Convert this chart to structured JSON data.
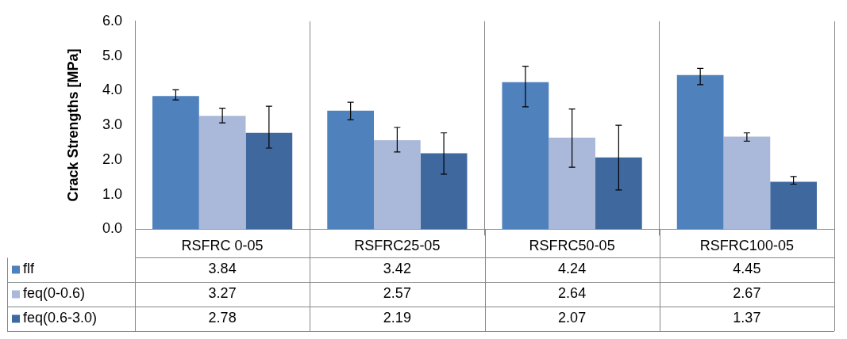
{
  "chart_data": {
    "type": "bar",
    "ylabel": "Crack Strengths [MPa]",
    "categories": [
      "RSFRC 0-05",
      "RSFRC25-05",
      "RSFRC50-05",
      "RSFRC100-05"
    ],
    "series": [
      {
        "name": "flf",
        "color": "#4f81bd",
        "values": [
          3.84,
          3.42,
          4.24,
          4.45
        ],
        "errors": [
          [
            3.73,
            4.02
          ],
          [
            3.16,
            3.66
          ],
          [
            3.53,
            4.7
          ],
          [
            4.17,
            4.64
          ]
        ]
      },
      {
        "name": "feq(0-0.6)",
        "color": "#aab9d9",
        "values": [
          3.27,
          2.57,
          2.64,
          2.67
        ],
        "errors": [
          [
            3.07,
            3.49
          ],
          [
            2.23,
            2.94
          ],
          [
            1.79,
            3.47
          ],
          [
            2.54,
            2.78
          ]
        ]
      },
      {
        "name": "feq(0.6-3.0)",
        "color": "#3f699e",
        "values": [
          2.78,
          2.19,
          2.07,
          1.37
        ],
        "errors": [
          [
            2.34,
            3.55
          ],
          [
            1.59,
            2.78
          ],
          [
            1.13,
            3.0
          ],
          [
            1.3,
            1.52
          ]
        ]
      }
    ],
    "ylim": [
      0,
      6
    ],
    "yticks": [
      {
        "value": 0,
        "label": "0.0"
      },
      {
        "value": 1,
        "label": "1.0"
      },
      {
        "value": 2,
        "label": "2.0"
      },
      {
        "value": 3,
        "label": "3.0"
      },
      {
        "value": 4,
        "label": "4.0"
      },
      {
        "value": 5,
        "label": "5.0"
      },
      {
        "value": 6,
        "label": "6.0"
      }
    ],
    "grid": "x",
    "legend": "bottom",
    "data_labels": true
  }
}
